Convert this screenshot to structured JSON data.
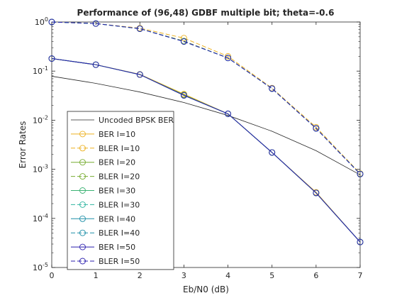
{
  "chart_data": {
    "type": "line",
    "title": "Performance of (96,48) GDBF multiple bit; theta=-0.6",
    "xlabel": "Eb/N0 (dB)",
    "ylabel": "Error Rates",
    "xlim": [
      0,
      7
    ],
    "ylim": [
      1e-05,
      1
    ],
    "yscale": "log",
    "grid": false,
    "legend_position": "lower-left",
    "x": [
      0,
      1,
      2,
      3,
      4,
      5,
      6,
      7
    ],
    "xticks": [
      "0",
      "1",
      "2",
      "3",
      "4",
      "5",
      "6",
      "7"
    ],
    "yticks": [
      {
        "base": "10",
        "exp": "0"
      },
      {
        "base": "10",
        "exp": "-1"
      },
      {
        "base": "10",
        "exp": "-2"
      },
      {
        "base": "10",
        "exp": "-3"
      },
      {
        "base": "10",
        "exp": "-4"
      },
      {
        "base": "10",
        "exp": "-5"
      }
    ],
    "series": [
      {
        "name": "Uncoded BPSK BER",
        "color": "#262626",
        "dash": false,
        "marker": false,
        "values": [
          0.0786,
          0.0563,
          0.0375,
          0.0229,
          0.0125,
          0.00595,
          0.00239,
          0.00077
        ]
      },
      {
        "name": "BER I=10",
        "color": "#EDB120",
        "dash": false,
        "marker": true,
        "values": [
          0.18,
          0.135,
          0.086,
          0.034,
          0.0135,
          0.0022,
          0.00034,
          3.3e-05
        ]
      },
      {
        "name": "BLER I=10",
        "color": "#EDB120",
        "dash": true,
        "marker": true,
        "values": [
          1.0,
          0.93,
          0.75,
          0.47,
          0.2,
          0.045,
          0.0072,
          0.00082
        ]
      },
      {
        "name": "BER I=20",
        "color": "#77AC30",
        "dash": false,
        "marker": true,
        "values": [
          0.18,
          0.135,
          0.085,
          0.033,
          0.0135,
          0.0022,
          0.00033,
          3.3e-05
        ]
      },
      {
        "name": "BLER I=20",
        "color": "#77AC30",
        "dash": true,
        "marker": true,
        "values": [
          1.0,
          0.93,
          0.73,
          0.41,
          0.185,
          0.044,
          0.0068,
          0.00081
        ]
      },
      {
        "name": "BER I=30",
        "color": "#3BB273",
        "dash": false,
        "marker": true,
        "values": [
          0.18,
          0.135,
          0.085,
          0.032,
          0.0135,
          0.0022,
          0.00033,
          3.3e-05
        ]
      },
      {
        "name": "BLER I=30",
        "color": "#2EB4A0",
        "dash": true,
        "marker": true,
        "values": [
          1.0,
          0.93,
          0.73,
          0.4,
          0.185,
          0.044,
          0.0068,
          0.0008
        ]
      },
      {
        "name": "BER I=40",
        "color": "#1E8FA8",
        "dash": false,
        "marker": true,
        "values": [
          0.18,
          0.135,
          0.085,
          0.032,
          0.0135,
          0.0022,
          0.00033,
          3.3e-05
        ]
      },
      {
        "name": "BLER I=40",
        "color": "#1E8FA8",
        "dash": true,
        "marker": true,
        "values": [
          1.0,
          0.93,
          0.73,
          0.4,
          0.185,
          0.044,
          0.0068,
          0.0008
        ]
      },
      {
        "name": "BER I=50",
        "color": "#2B1FAE",
        "dash": false,
        "marker": true,
        "values": [
          0.18,
          0.135,
          0.085,
          0.032,
          0.0135,
          0.0022,
          0.00033,
          3.3e-05
        ]
      },
      {
        "name": "BLER I=50",
        "color": "#2B1FAE",
        "dash": true,
        "marker": true,
        "values": [
          1.0,
          0.93,
          0.73,
          0.4,
          0.185,
          0.044,
          0.0068,
          0.0008
        ]
      }
    ]
  }
}
